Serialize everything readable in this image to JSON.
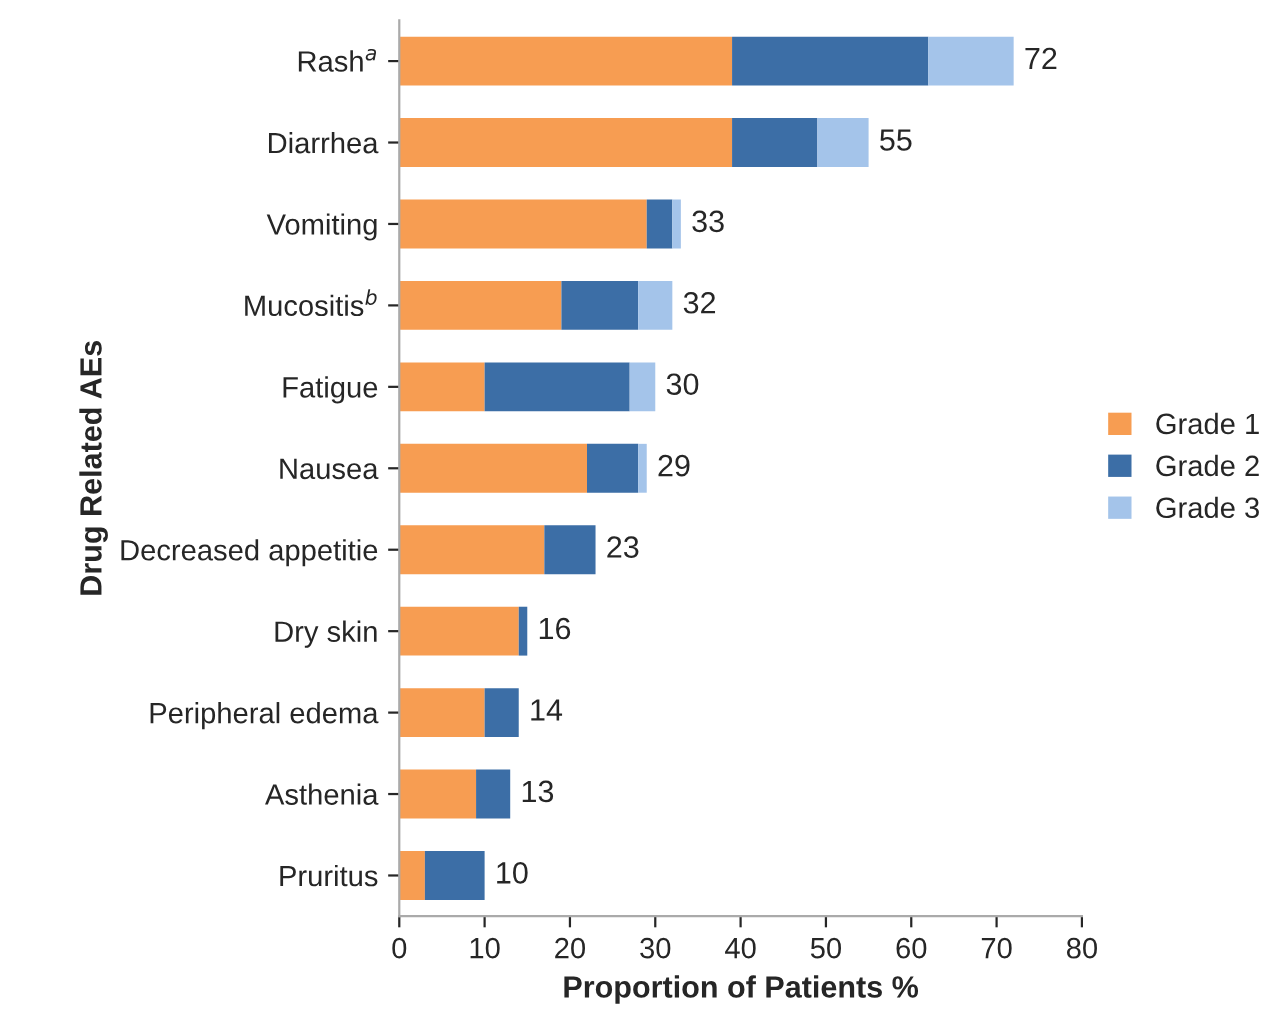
{
  "chart_data": {
    "type": "bar",
    "orientation": "horizontal",
    "stacked": true,
    "categories": [
      "Rash$^{a}$",
      "Diarrhea",
      "Vomiting",
      "Mucositis$^{b}$",
      "Fatigue",
      "Nausea",
      "Decreased appetitie",
      "Dry skin",
      "Peripheral edema",
      "Asthenia",
      "Pruritus"
    ],
    "series": [
      {
        "name": "Grade 1",
        "color": "#f79d52",
        "values": [
          39,
          39,
          29,
          19,
          10,
          22,
          17,
          14,
          10,
          9,
          3
        ]
      },
      {
        "name": "Grade 2",
        "color": "#3c6ea6",
        "values": [
          23,
          10,
          3,
          9,
          17,
          6,
          6,
          1,
          4,
          4,
          7
        ]
      },
      {
        "name": "Grade 3",
        "color": "#a4c4ea",
        "values": [
          10,
          6,
          1,
          4,
          3,
          1,
          null,
          null,
          null,
          null,
          null
        ]
      }
    ],
    "totals": [
      "72",
      "55",
      "33",
      "32",
      "30",
      "29",
      "23",
      "16",
      "14",
      "13",
      "10"
    ],
    "xlim": [
      0,
      80
    ],
    "xticks": [
      0,
      10,
      20,
      30,
      40,
      50,
      60,
      70,
      80
    ],
    "xlabel": "Proportion of Patients %",
    "ylabel": "Drug Related AEs",
    "legend": "right",
    "grid": false
  }
}
